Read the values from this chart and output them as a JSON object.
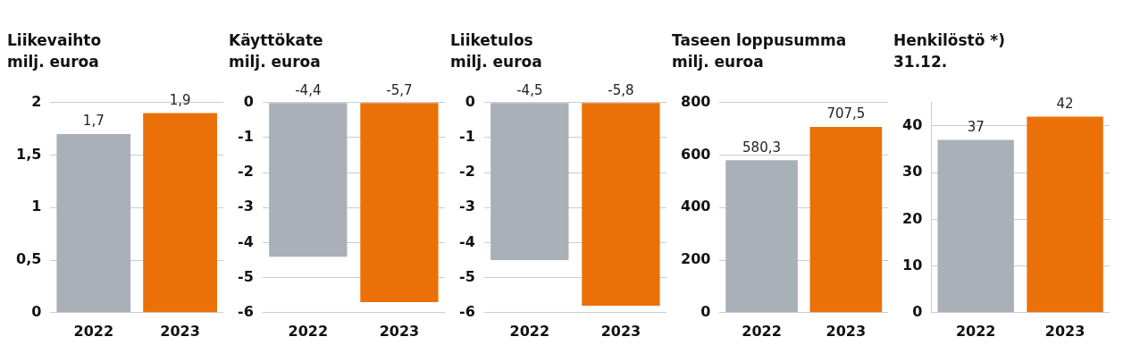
{
  "chart_data": [
    {
      "type": "bar",
      "title": "Liikevaihto",
      "subtitle": "milj. euroa",
      "categories": [
        "2022",
        "2023"
      ],
      "values": [
        1.7,
        1.9
      ],
      "colors": [
        "#aab0b8",
        "#ec7008"
      ],
      "value_labels": [
        "1,7",
        "1,9"
      ],
      "ylim": [
        0,
        2
      ],
      "yticks": [
        0,
        {
          "value": 0.5,
          "label": "0,5"
        },
        1,
        {
          "value": 1.5,
          "label": "1,5"
        },
        2
      ],
      "grid": "y",
      "legend": false
    },
    {
      "type": "bar",
      "title": "Käyttökate",
      "subtitle": "milj. euroa",
      "categories": [
        "2022",
        "2023"
      ],
      "values": [
        -4.4,
        -5.7
      ],
      "colors": [
        "#aab0b8",
        "#ec7008"
      ],
      "value_labels": [
        "-4,4",
        "-5,7"
      ],
      "ylim": [
        -6,
        0
      ],
      "yticks": [
        -6,
        -5,
        -4,
        -3,
        -2,
        -1,
        0
      ],
      "grid": "y",
      "legend": false
    },
    {
      "type": "bar",
      "title": "Liiketulos",
      "subtitle": "milj. euroa",
      "categories": [
        "2022",
        "2023"
      ],
      "values": [
        -4.5,
        -5.8
      ],
      "colors": [
        "#aab0b8",
        "#ec7008"
      ],
      "value_labels": [
        "-4,5",
        "-5,8"
      ],
      "ylim": [
        -6,
        0
      ],
      "yticks": [
        -6,
        -5,
        -4,
        -3,
        -2,
        -1,
        0
      ],
      "grid": "y",
      "legend": false
    },
    {
      "type": "bar",
      "title": "Taseen loppusumma",
      "subtitle": "milj. euroa",
      "categories": [
        "2022",
        "2023"
      ],
      "values": [
        580.3,
        707.5
      ],
      "colors": [
        "#aab0b8",
        "#ec7008"
      ],
      "value_labels": [
        "580,3",
        "707,5"
      ],
      "ylim": [
        0,
        800
      ],
      "yticks": [
        0,
        200,
        400,
        600,
        800
      ],
      "grid": "y",
      "legend": false
    },
    {
      "type": "bar",
      "title": "Henkilöstö *)",
      "subtitle": "31.12.",
      "categories": [
        "2022",
        "2023"
      ],
      "values": [
        37,
        42
      ],
      "colors": [
        "#aab0b8",
        "#ec7008"
      ],
      "value_labels": [
        "37",
        "42"
      ],
      "ylim": [
        0,
        45
      ],
      "yticks": [
        0,
        10,
        20,
        30,
        40
      ],
      "grid": "y",
      "legend": false
    }
  ]
}
